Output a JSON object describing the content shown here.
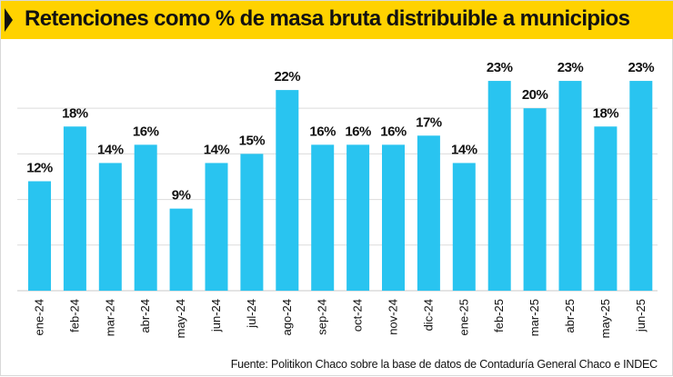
{
  "header": {
    "title": "Retenciones como % de masa bruta distribuible a municipios"
  },
  "footer": {
    "source": "Fuente: Politikon Chaco sobre la base de datos de Contaduría General Chaco e INDEC"
  },
  "colors": {
    "bar": "#29c4f0",
    "title_bar": "#ffd200",
    "text": "#111111",
    "grid": "#dcdcdc"
  },
  "chart_data": {
    "type": "bar",
    "title": "Retenciones como % de masa bruta distribuible a municipios",
    "xlabel": "",
    "ylabel": "",
    "grid": true,
    "categories": [
      "ene-24",
      "feb-24",
      "mar-24",
      "abr-24",
      "may-24",
      "jun-24",
      "jul-24",
      "ago-24",
      "sep-24",
      "oct-24",
      "nov-24",
      "dic-24",
      "ene-25",
      "feb-25",
      "mar-25",
      "abr-25",
      "may-25",
      "jun-25"
    ],
    "values": [
      12,
      18,
      14,
      16,
      9,
      14,
      15,
      22,
      16,
      16,
      16,
      17,
      14,
      23,
      20,
      23,
      18,
      23
    ],
    "labels": [
      "12%",
      "18%",
      "14%",
      "16%",
      "9%",
      "14%",
      "15%",
      "22%",
      "16%",
      "16%",
      "16%",
      "17%",
      "14%",
      "23%",
      "20%",
      "23%",
      "18%",
      "23%"
    ]
  }
}
